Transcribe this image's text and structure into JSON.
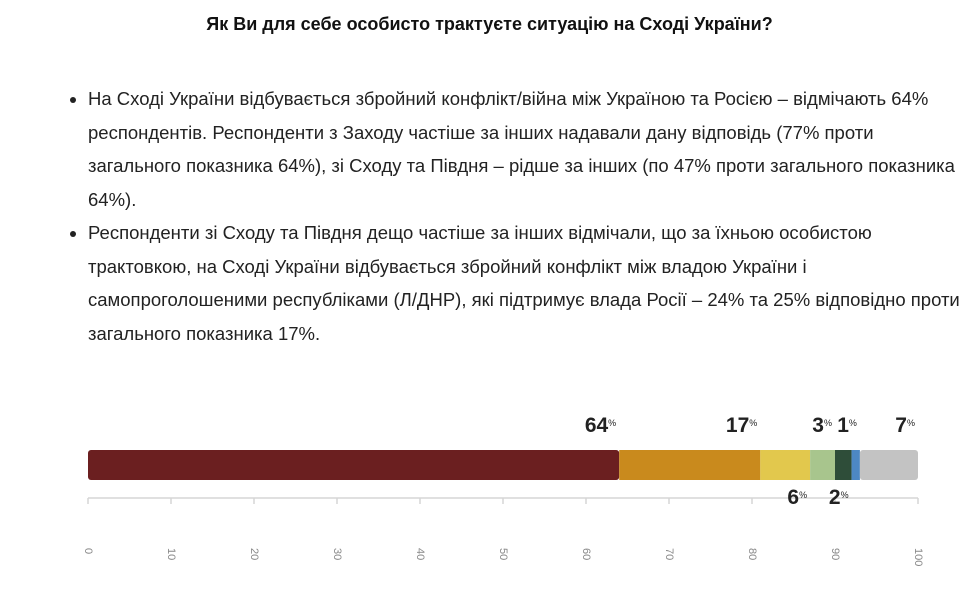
{
  "header": {
    "title": "Як Ви для себе особисто трактуєте ситуацію на Сході України?"
  },
  "bullets": [
    "На Сході України відбувається збройний конфлікт/війна між Україною та Росією – відмічають 64% респондентів. Респонденти з Заходу частіше за інших надавали дану відповідь (77% проти загального показника 64%), зі Сходу та Півдня – рідше за інших (по 47% проти загального показника 64%).",
    "Респонденти зі Сходу та Півдня дещо частіше за інших відмічали, що за їхньою особистою трактовкою, на Сході України відбувається збройний конфлікт між владою України і самопроголошеними республіками (Л/ДНР), які підтримує влада Росії – 24% та 25% відповідно проти загального показника 17%."
  ],
  "chart_data": {
    "type": "stacked-bar-horizontal",
    "value_unit": "%",
    "series": [
      {
        "color": "#6b1f20",
        "values": [
          64
        ]
      },
      {
        "color": "#c98a1d",
        "values": [
          17
        ]
      },
      {
        "color": "#e2c84d",
        "values": [
          6
        ]
      },
      {
        "color": "#a8c58d",
        "values": [
          3
        ]
      },
      {
        "color": "#2e4d39",
        "values": [
          2
        ]
      },
      {
        "color": "#4d88c4",
        "values": [
          1
        ]
      },
      {
        "color": "#c3c3c3",
        "values": [
          7
        ]
      }
    ],
    "xlim": [
      0,
      100
    ],
    "xticks": [
      0,
      10,
      20,
      30,
      40,
      50,
      60,
      70,
      80,
      90,
      100
    ]
  }
}
